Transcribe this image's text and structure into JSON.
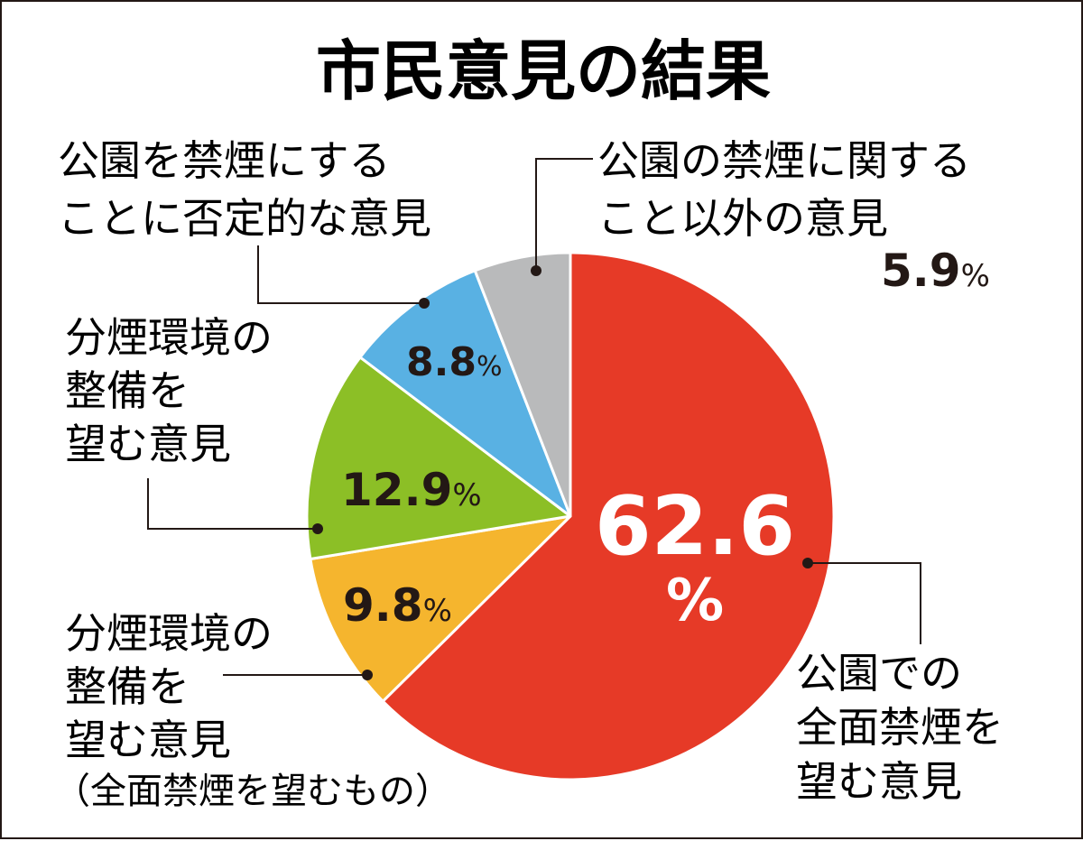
{
  "chart_data": {
    "type": "pie",
    "title": "市民意見の結果",
    "unit": "%",
    "slices": [
      {
        "name": "公園での全面禁煙を望む意見",
        "lines": [
          "公園での",
          "全面禁煙を",
          "望む意見"
        ],
        "value": 62.6,
        "value_label": "62.6",
        "unit_label": "%",
        "color": "#e63a27"
      },
      {
        "name": "分煙環境の整備を望む意見（全面禁煙を望むもの）",
        "lines": [
          "分煙環境の",
          "整備を",
          "望む意見"
        ],
        "note": "（全面禁煙を望むもの）",
        "value": 9.8,
        "value_label": "9.8",
        "unit_label": "%",
        "color": "#f5b52e"
      },
      {
        "name": "分煙環境の整備を望む意見",
        "lines": [
          "分煙環境の",
          "整備を",
          "望む意見"
        ],
        "value": 12.9,
        "value_label": "12.9",
        "unit_label": "%",
        "color": "#8cbf26"
      },
      {
        "name": "公園を禁煙にすることに否定的な意見",
        "lines": [
          "公園を禁煙にする",
          "ことに否定的な意見"
        ],
        "value": 8.8,
        "value_label": "8.8",
        "unit_label": "%",
        "color": "#59b1e3"
      },
      {
        "name": "公園の禁煙に関すること以外の意見",
        "lines": [
          "公園の禁煙に関する",
          "こと以外の意見"
        ],
        "value": 5.9,
        "value_label": "5.9",
        "unit_label": "%",
        "color": "#b9babb"
      }
    ]
  }
}
